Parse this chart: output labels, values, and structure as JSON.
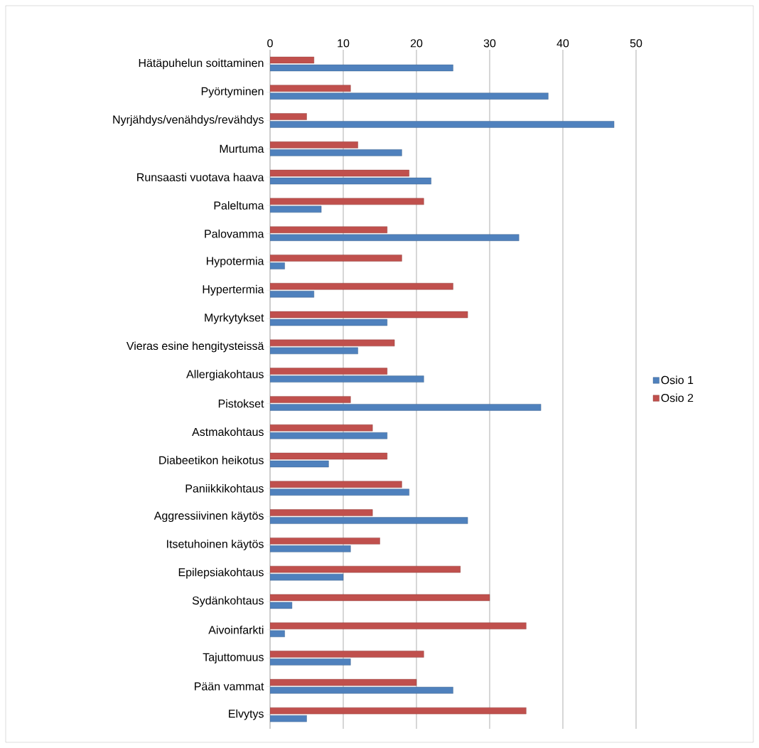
{
  "chart_data": {
    "type": "bar",
    "orientation": "horizontal",
    "categories": [
      "Hätäpuhelun soittaminen",
      "Pyörtyminen",
      "Nyrjähdys/venähdys/revähdys",
      "Murtuma",
      "Runsaasti vuotava haava",
      "Paleltuma",
      "Palovamma",
      "Hypotermia",
      "Hypertermia",
      "Myrkytykset",
      "Vieras esine hengitysteissä",
      "Allergiakohtaus",
      "Pistokset",
      "Astmakohtaus",
      "Diabeetikon heikotus",
      "Paniikkikohtaus",
      "Aggressiivinen käytös",
      "Itsetuhoinen käytös",
      "Epilepsiakohtaus",
      "Sydänkohtaus",
      "Aivoinfarkti",
      "Tajuttomuus",
      "Pään vammat",
      "Elvytys"
    ],
    "series": [
      {
        "name": "Osio 1",
        "color": "#4f81bd",
        "values": [
          25,
          38,
          47,
          18,
          22,
          7,
          34,
          2,
          6,
          16,
          12,
          21,
          37,
          16,
          8,
          19,
          27,
          11,
          10,
          3,
          2,
          11,
          25,
          5
        ]
      },
      {
        "name": "Osio 2",
        "color": "#c0504d",
        "values": [
          6,
          11,
          5,
          12,
          19,
          21,
          16,
          18,
          25,
          27,
          17,
          16,
          11,
          14,
          16,
          18,
          14,
          15,
          26,
          30,
          35,
          21,
          20,
          35
        ]
      }
    ],
    "xlim": [
      0,
      50
    ],
    "xticks": [
      0,
      10,
      20,
      30,
      40,
      50
    ],
    "grid": "x",
    "legend": "right"
  }
}
